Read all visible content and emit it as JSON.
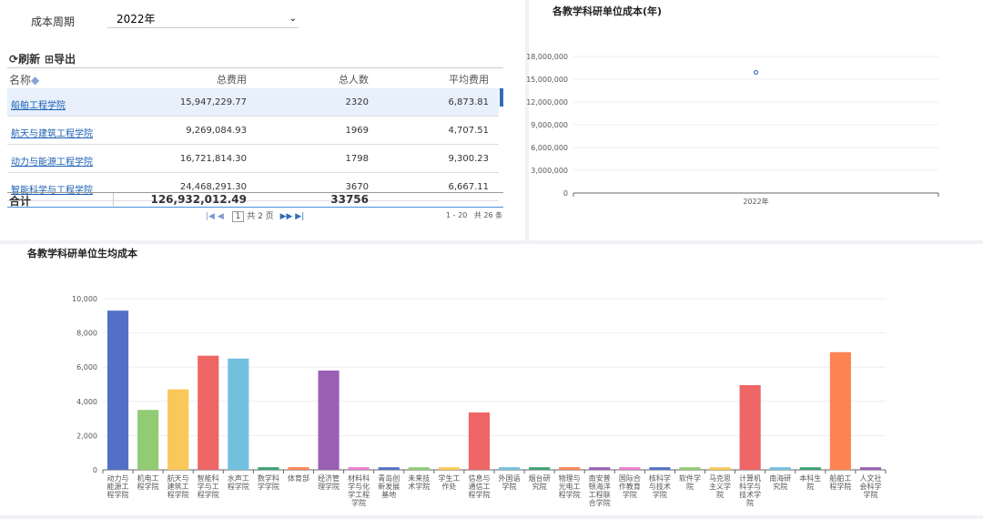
{
  "filter": {
    "label": "成本周期",
    "value": "2022年"
  },
  "toolbar": {
    "refresh": "刷新",
    "export": "导出"
  },
  "table": {
    "headers": [
      "名称",
      "总费用",
      "总人数",
      "平均费用"
    ],
    "rows": [
      [
        "船舶工程学院",
        "15,947,229.77",
        "2320",
        "6,873.81"
      ],
      [
        "航天与建筑工程学院",
        "9,269,084.93",
        "1969",
        "4,707.51"
      ],
      [
        "动力与能源工程学院",
        "16,721,814.30",
        "1798",
        "9,300.23"
      ],
      [
        "智能科学与工程学院",
        "24,468,291.30",
        "3670",
        "6,667.11"
      ]
    ],
    "total": {
      "label": "合计",
      "cost": "126,932,012.49",
      "people": "33756"
    }
  },
  "pager": {
    "page": "1",
    "pages": "共 2 页",
    "range": "1 - 20",
    "count": "共 26 条"
  },
  "charts": [
    {
      "type": "scatter",
      "title": "各教学科研单位成本(年)",
      "categories": [
        "2022年"
      ],
      "values": [
        15900000
      ],
      "color": "#5470c6",
      "ylim": [
        0,
        18000000
      ],
      "yticks": [
        0,
        {
          "value": 3000000,
          "label": "3,000,000"
        },
        {
          "value": 6000000,
          "label": "6,000,000"
        },
        {
          "value": 9000000,
          "label": "9,000,000"
        },
        {
          "value": 12000000,
          "label": "12,000,000"
        },
        {
          "value": 15000000,
          "label": "15,000,000"
        },
        {
          "value": 18000000,
          "label": "18,000,000"
        }
      ]
    },
    {
      "type": "bar",
      "title": "各教学科研单位生均成本",
      "categories": [
        "动力与能源工程学院",
        "机电工程学院",
        "航天与建筑工程学院",
        "智能科学与工程学院",
        "水声工程学院",
        "数学科学学院",
        "体育部",
        "经济管理学院",
        "材料科学与化学工程学院",
        "青岛创新发展基地",
        "未来技术学院",
        "学生工作处",
        "信息与通信工程学院",
        "外国语学院",
        "烟台研究院",
        "物理与光电工程学院",
        "南安普顿海洋工程联合学院",
        "国际合作教育学院",
        "核科学与技术学院",
        "软件学院",
        "马克思主义学院",
        "计算机科学与技术学院",
        "南海研究院",
        "本科生院",
        "船舶工程学院",
        "人文社会科学学院"
      ],
      "values": [
        9300,
        3500,
        4700,
        6667,
        6500,
        150,
        150,
        5800,
        150,
        150,
        150,
        150,
        3350,
        150,
        150,
        150,
        150,
        150,
        150,
        150,
        150,
        4950,
        150,
        150,
        6874,
        150
      ],
      "colors": [
        "#5470c6",
        "#91cc75",
        "#fac858",
        "#ee6666",
        "#73c0de",
        "#3ba272",
        "#fc8452",
        "#9a60b4",
        "#ea7ccc",
        "#5470c6",
        "#91cc75",
        "#fac858",
        "#ee6666",
        "#73c0de",
        "#3ba272",
        "#fc8452",
        "#9a60b4",
        "#ea7ccc",
        "#5470c6",
        "#91cc75",
        "#fac858",
        "#ee6666",
        "#73c0de",
        "#3ba272",
        "#fc8452",
        "#9a60b4"
      ],
      "ylim": [
        0,
        10000
      ],
      "yticks": [
        0,
        {
          "value": 2000,
          "label": "2,000"
        },
        {
          "value": 4000,
          "label": "4,000"
        },
        {
          "value": 6000,
          "label": "6,000"
        },
        {
          "value": 8000,
          "label": "8,000"
        },
        {
          "value": 10000,
          "label": "10,000"
        }
      ]
    }
  ]
}
